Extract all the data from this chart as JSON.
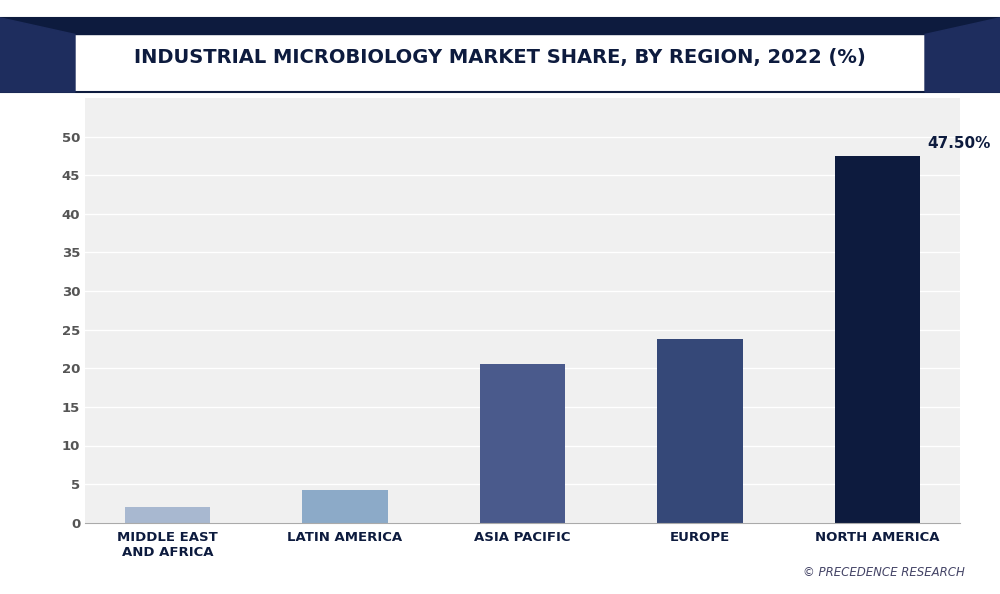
{
  "title": "INDUSTRIAL MICROBIOLOGY MARKET SHARE, BY REGION, 2022 (%)",
  "categories": [
    "MIDDLE EAST\nAND AFRICA",
    "LATIN AMERICA",
    "ASIA PACIFIC",
    "EUROPE",
    "NORTH AMERICA"
  ],
  "values": [
    2.0,
    4.3,
    20.6,
    23.8,
    47.5
  ],
  "bar_colors": [
    "#a8b8d0",
    "#8caac8",
    "#4a5a8c",
    "#354878",
    "#0d1b3e"
  ],
  "annotation_label": "47.50%",
  "annotation_bar_index": 4,
  "ylim": [
    0,
    55
  ],
  "yticks": [
    0,
    5,
    10,
    15,
    20,
    25,
    30,
    35,
    40,
    45,
    50
  ],
  "background_color": "#ffffff",
  "plot_bg_color": "#f0f0f0",
  "title_color": "#0d1b3e",
  "axis_label_color": "#0d1b3e",
  "tick_color": "#555555",
  "grid_color": "#ffffff",
  "watermark": "© PRECEDENCE RESEARCH",
  "title_fontsize": 14,
  "tick_fontsize": 9.5,
  "annotation_fontsize": 11,
  "bar_width": 0.48,
  "title_band_color": "#ffffff",
  "top_band_color": "#0d1b3e",
  "deco_color": "#1e2d5e"
}
